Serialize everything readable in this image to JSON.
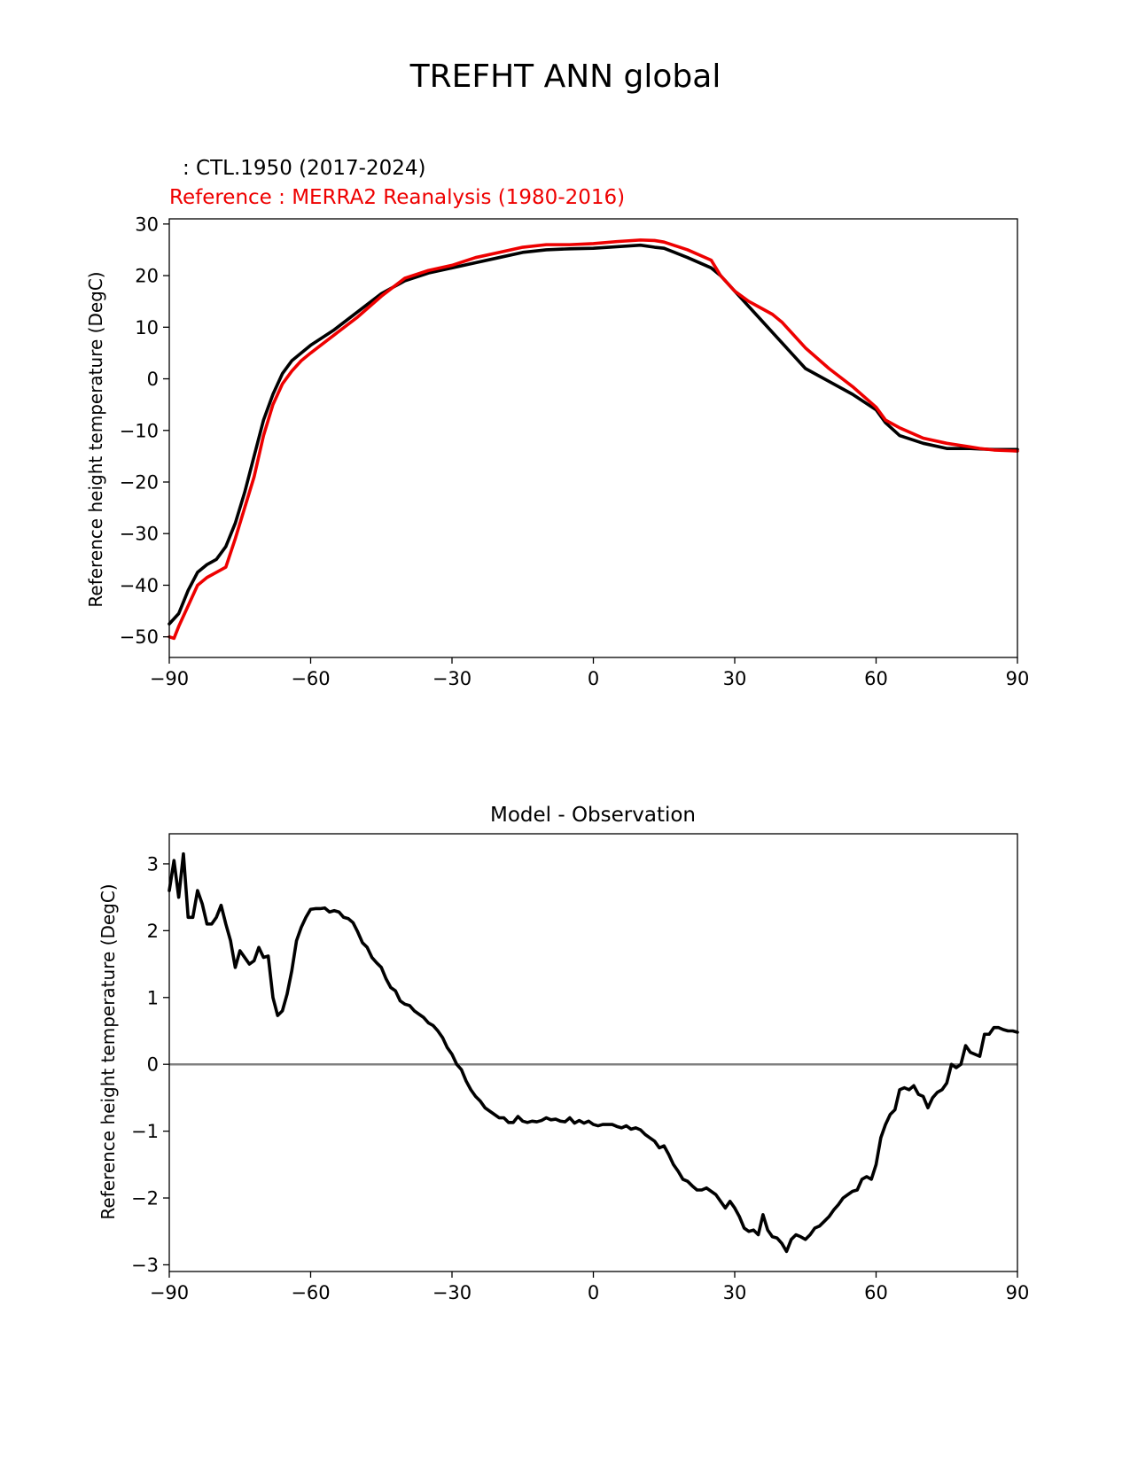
{
  "figure": {
    "title": "TREFHT ANN global"
  },
  "colors": {
    "test": "#000000",
    "reference": "#ee0000",
    "zero_line": "#808080",
    "axes": "#000000"
  },
  "chart_data": [
    {
      "type": "line",
      "title_test": ": CTL.1950 (2017-2024)",
      "title_reference": "Reference : MERRA2 Reanalysis (1980-2016)",
      "xlabel": "",
      "ylabel": "Reference height temperature (DegC)",
      "xlim": [
        -90,
        90
      ],
      "ylim": [
        -54,
        31
      ],
      "xticks": [
        -90,
        -60,
        -30,
        0,
        30,
        60,
        90
      ],
      "xtick_labels": [
        "−90",
        "−60",
        "−30",
        "0",
        "30",
        "60",
        "90"
      ],
      "yticks": [
        -50,
        -40,
        -30,
        -20,
        -10,
        0,
        10,
        20,
        30
      ],
      "ytick_labels": [
        "−50",
        "−40",
        "−30",
        "−20",
        "−10",
        "0",
        "10",
        "20",
        "30"
      ],
      "series": [
        {
          "name": "test",
          "x": [
            -90,
            -88,
            -86,
            -84,
            -82,
            -80,
            -78,
            -76,
            -74,
            -72,
            -70,
            -68,
            -66,
            -64,
            -62,
            -60,
            -55,
            -50,
            -45,
            -40,
            -35,
            -30,
            -25,
            -20,
            -15,
            -10,
            -5,
            0,
            5,
            10,
            13,
            15,
            20,
            25,
            27,
            30,
            35,
            40,
            45,
            50,
            55,
            60,
            62,
            65,
            70,
            75,
            80,
            82,
            85,
            90
          ],
          "y": [
            -47.5,
            -45.5,
            -41,
            -37.5,
            -36,
            -35,
            -32.5,
            -28,
            -22,
            -15,
            -8,
            -3,
            1,
            3.5,
            5,
            6.5,
            9.5,
            13,
            16.5,
            19,
            20.5,
            21.5,
            22.5,
            23.5,
            24.5,
            25,
            25.2,
            25.3,
            25.6,
            25.9,
            25.5,
            25.3,
            23.5,
            21.5,
            20,
            17,
            12,
            7,
            2,
            -0.5,
            -3,
            -6,
            -8.5,
            -11,
            -12.5,
            -13.5,
            -13.5,
            -13.6,
            -13.7,
            -13.7
          ]
        },
        {
          "name": "reference",
          "x": [
            -90,
            -89,
            -88,
            -86,
            -84,
            -82,
            -80,
            -78,
            -76,
            -74,
            -72,
            -70,
            -68,
            -66,
            -64,
            -62,
            -60,
            -55,
            -50,
            -45,
            -40,
            -35,
            -30,
            -25,
            -20,
            -15,
            -10,
            -5,
            0,
            5,
            10,
            13,
            15,
            20,
            25,
            27,
            30,
            33,
            35,
            38,
            40,
            45,
            50,
            55,
            60,
            62,
            65,
            70,
            75,
            80,
            82,
            85,
            90
          ],
          "y": [
            -50,
            -50.3,
            -48,
            -44,
            -40,
            -38.5,
            -37.5,
            -36.5,
            -31,
            -25,
            -19,
            -11,
            -5,
            -1,
            1.5,
            3.5,
            5,
            8.5,
            12,
            16,
            19.5,
            21,
            22,
            23.5,
            24.5,
            25.5,
            26,
            26,
            26.2,
            26.6,
            26.9,
            26.8,
            26.5,
            25,
            23,
            20,
            17,
            15,
            14,
            12.5,
            11,
            6,
            2,
            -1.5,
            -5.5,
            -8,
            -9.5,
            -11.5,
            -12.5,
            -13.2,
            -13.5,
            -13.8,
            -14
          ]
        }
      ]
    },
    {
      "type": "line",
      "title": "Model - Observation",
      "xlabel": "",
      "ylabel": "Reference height temperature (DegC)",
      "xlim": [
        -90,
        90
      ],
      "ylim": [
        -3.1,
        3.45
      ],
      "xticks": [
        -90,
        -60,
        -30,
        0,
        30,
        60,
        90
      ],
      "xtick_labels": [
        "−90",
        "−60",
        "−30",
        "0",
        "30",
        "60",
        "90"
      ],
      "yticks": [
        -3,
        -2,
        -1,
        0,
        1,
        2,
        3
      ],
      "ytick_labels": [
        "−3",
        "−2",
        "−1",
        "0",
        "1",
        "2",
        "3"
      ],
      "zero_line": 0,
      "series": [
        {
          "name": "difference",
          "x": [
            -90,
            -89,
            -88,
            -87,
            -86,
            -85,
            -84,
            -83,
            -82,
            -81,
            -80,
            -79,
            -78,
            -77,
            -76,
            -75,
            -74,
            -73,
            -72,
            -71,
            -70,
            -69,
            -68,
            -67,
            -66,
            -65,
            -64,
            -63,
            -62,
            -61,
            -60,
            -59,
            -58,
            -57,
            -56,
            -55,
            -54,
            -53,
            -52,
            -51,
            -50,
            -49,
            -48,
            -47,
            -46,
            -45,
            -44,
            -43,
            -42,
            -41,
            -40,
            -39,
            -38,
            -37,
            -36,
            -35,
            -34,
            -33,
            -32,
            -31,
            -30,
            -29,
            -28,
            -27,
            -26,
            -25,
            -24,
            -23,
            -22,
            -21,
            -20,
            -19,
            -18,
            -17,
            -16,
            -15,
            -14,
            -13,
            -12,
            -11,
            -10,
            -9,
            -8,
            -7,
            -6,
            -5,
            -4,
            -3,
            -2,
            -1,
            0,
            1,
            2,
            3,
            4,
            5,
            6,
            7,
            8,
            9,
            10,
            11,
            12,
            13,
            14,
            15,
            16,
            17,
            18,
            19,
            20,
            21,
            22,
            23,
            24,
            25,
            26,
            27,
            28,
            29,
            30,
            31,
            32,
            33,
            34,
            35,
            36,
            37,
            38,
            39,
            40,
            41,
            42,
            43,
            44,
            45,
            46,
            47,
            48,
            49,
            50,
            51,
            52,
            53,
            54,
            55,
            56,
            57,
            58,
            59,
            60,
            61,
            62,
            63,
            64,
            65,
            66,
            67,
            68,
            69,
            70,
            71,
            72,
            73,
            74,
            75,
            76,
            77,
            78,
            79,
            80,
            81,
            82,
            83,
            84,
            85,
            86,
            87,
            88,
            89,
            90
          ],
          "y": [
            2.6,
            3.05,
            2.5,
            3.15,
            2.2,
            2.2,
            2.6,
            2.4,
            2.1,
            2.1,
            2.2,
            2.38,
            2.1,
            1.85,
            1.45,
            1.7,
            1.6,
            1.5,
            1.55,
            1.75,
            1.6,
            1.62,
            1.0,
            0.73,
            0.8,
            1.05,
            1.4,
            1.85,
            2.05,
            2.2,
            2.32,
            2.33,
            2.33,
            2.34,
            2.28,
            2.3,
            2.28,
            2.2,
            2.18,
            2.12,
            1.98,
            1.82,
            1.75,
            1.6,
            1.52,
            1.45,
            1.28,
            1.15,
            1.1,
            0.95,
            0.9,
            0.88,
            0.8,
            0.75,
            0.7,
            0.62,
            0.58,
            0.5,
            0.4,
            0.25,
            0.15,
            0.0,
            -0.08,
            -0.25,
            -0.38,
            -0.48,
            -0.55,
            -0.65,
            -0.7,
            -0.75,
            -0.8,
            -0.8,
            -0.87,
            -0.87,
            -0.78,
            -0.85,
            -0.87,
            -0.85,
            -0.86,
            -0.84,
            -0.8,
            -0.83,
            -0.82,
            -0.85,
            -0.86,
            -0.8,
            -0.88,
            -0.84,
            -0.88,
            -0.85,
            -0.9,
            -0.92,
            -0.9,
            -0.9,
            -0.9,
            -0.93,
            -0.95,
            -0.92,
            -0.97,
            -0.95,
            -0.98,
            -1.05,
            -1.1,
            -1.15,
            -1.25,
            -1.22,
            -1.35,
            -1.5,
            -1.6,
            -1.72,
            -1.75,
            -1.82,
            -1.88,
            -1.88,
            -1.85,
            -1.9,
            -1.95,
            -2.05,
            -2.15,
            -2.05,
            -2.15,
            -2.28,
            -2.45,
            -2.5,
            -2.48,
            -2.55,
            -2.25,
            -2.48,
            -2.58,
            -2.6,
            -2.68,
            -2.8,
            -2.62,
            -2.55,
            -2.58,
            -2.62,
            -2.55,
            -2.45,
            -2.42,
            -2.35,
            -2.28,
            -2.18,
            -2.1,
            -2.0,
            -1.95,
            -1.9,
            -1.88,
            -1.72,
            -1.68,
            -1.72,
            -1.5,
            -1.1,
            -0.9,
            -0.75,
            -0.68,
            -0.38,
            -0.35,
            -0.38,
            -0.32,
            -0.45,
            -0.48,
            -0.65,
            -0.5,
            -0.42,
            -0.38,
            -0.28,
            0.0,
            -0.05,
            0.0,
            0.28,
            0.18,
            0.15,
            0.12,
            0.45,
            0.45,
            0.55,
            0.55,
            0.52,
            0.5,
            0.5,
            0.48
          ]
        }
      ]
    }
  ]
}
